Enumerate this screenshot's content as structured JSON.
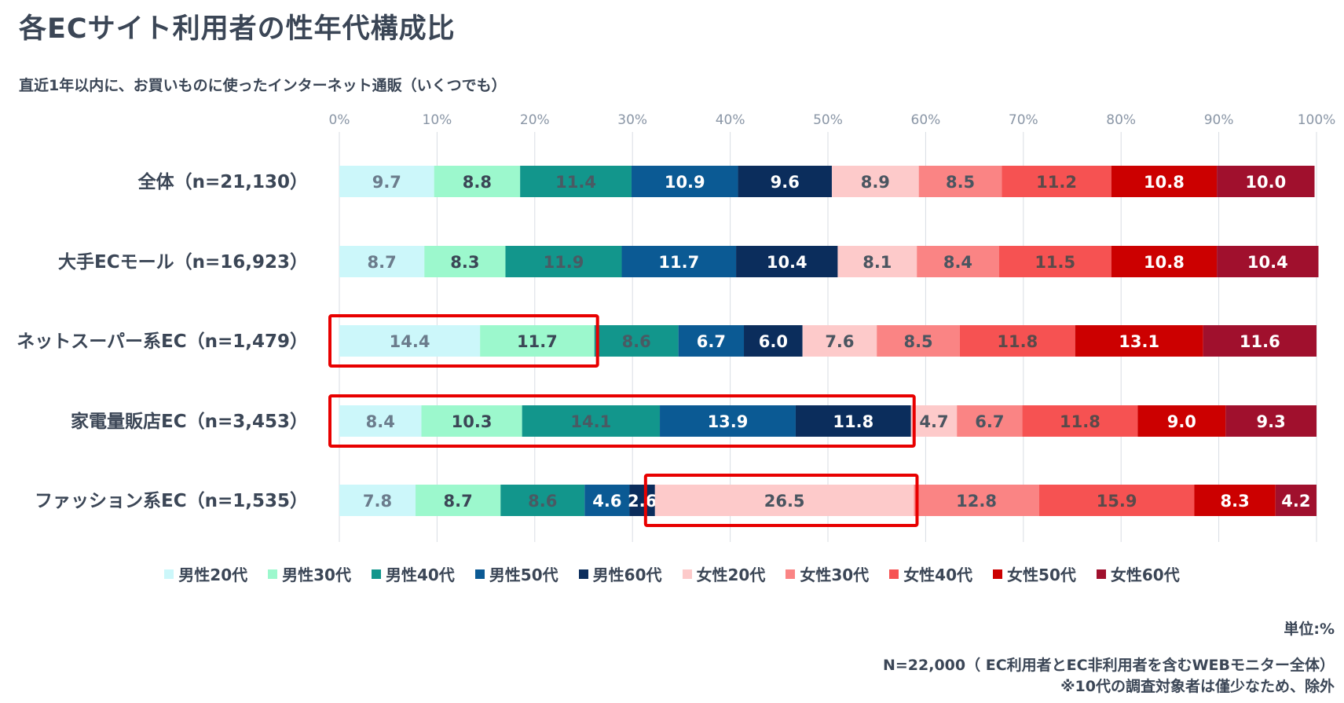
{
  "title": "各ECサイト利用者の性年代構成比",
  "subtitle": "直近1年以内に、お買いものに使ったインターネット通販（いくつでも）",
  "unit_note": "単位:%",
  "footnote_sample": "N=22,000（ EC利用者とEC非利用者を含むWEBモニター全体）",
  "footnote_exclusion": "※10代の調査対象者は僅少なため、除外",
  "chart_data": {
    "type": "bar",
    "orientation": "horizontal",
    "stacked": "percent",
    "xlim": [
      0,
      100
    ],
    "x_ticks": [
      "0%",
      "10%",
      "20%",
      "30%",
      "40%",
      "50%",
      "60%",
      "70%",
      "80%",
      "90%",
      "100%"
    ],
    "grid": true,
    "legend_position": "bottom",
    "categories": [
      "全体（n=21,130）",
      "大手ECモール（n=16,923）",
      "ネットスーパー系EC（n=1,479）",
      "家電量販店EC（n=3,453）",
      "ファッション系EC（n=1,535）"
    ],
    "series": [
      {
        "name": "男性20代",
        "color": "#ccf7fa",
        "label_color": "#6b7c8c",
        "values": [
          9.7,
          8.7,
          14.4,
          8.4,
          7.8
        ]
      },
      {
        "name": "男性30代",
        "color": "#9cf8cd",
        "label_color": "#3b4656",
        "values": [
          8.8,
          8.3,
          11.7,
          10.3,
          8.7
        ]
      },
      {
        "name": "男性40代",
        "color": "#12968c",
        "label_color": "#4a5a63",
        "values": [
          11.4,
          11.9,
          8.6,
          14.1,
          8.6
        ]
      },
      {
        "name": "男性50代",
        "color": "#0b5a94",
        "label_color": "#ffffff",
        "values": [
          10.9,
          11.7,
          6.7,
          13.9,
          4.6
        ]
      },
      {
        "name": "男性60代",
        "color": "#0b2d5c",
        "label_color": "#ffffff",
        "values": [
          9.6,
          10.4,
          6.0,
          11.8,
          2.6
        ]
      },
      {
        "name": "女性20代",
        "color": "#fdcaca",
        "label_color": "#4a5560",
        "values": [
          8.9,
          8.1,
          7.6,
          4.7,
          26.5
        ]
      },
      {
        "name": "女性30代",
        "color": "#fa8484",
        "label_color": "#4a5560",
        "values": [
          8.5,
          8.4,
          8.5,
          6.7,
          12.8
        ]
      },
      {
        "name": "女性40代",
        "color": "#f65252",
        "label_color": "#5a4a4a",
        "values": [
          11.2,
          11.5,
          11.8,
          11.8,
          15.9
        ]
      },
      {
        "name": "女性50代",
        "color": "#cc0000",
        "label_color": "#ffffff",
        "values": [
          10.8,
          10.8,
          13.1,
          9.0,
          8.3
        ]
      },
      {
        "name": "女性60代",
        "color": "#a0102d",
        "label_color": "#ffffff",
        "values": [
          10.0,
          10.4,
          11.6,
          9.3,
          4.2
        ]
      }
    ],
    "highlight_color": "#e80000",
    "highlights": [
      {
        "row": 2,
        "from_series": 0,
        "to_series": 1
      },
      {
        "row": 3,
        "from_series": 0,
        "to_series": 4
      },
      {
        "row": 4,
        "from_series": 5,
        "to_series": 5
      }
    ]
  }
}
